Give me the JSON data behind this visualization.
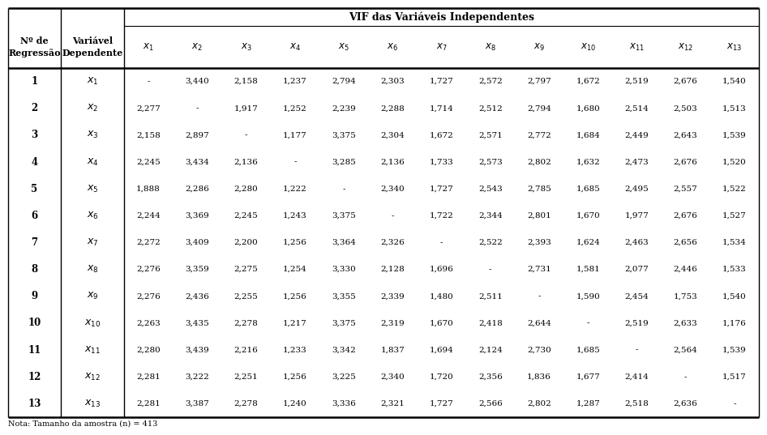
{
  "title": "VIF das Variáveis Independentes",
  "col0_header": "Nº de\nRegressão",
  "col1_header": "Variável\nDependente",
  "vif_headers": [
    "x_1",
    "x_2",
    "x_3",
    "x_4",
    "x_5",
    "x_6",
    "x_7",
    "x_8",
    "x_9",
    "x_10",
    "x_11",
    "x_12",
    "x_13"
  ],
  "rows": [
    {
      "reg": "1",
      "dep": "1",
      "vals": [
        "-",
        "3,440",
        "2,158",
        "1,237",
        "2,794",
        "2,303",
        "1,727",
        "2,572",
        "2,797",
        "1,672",
        "2,519",
        "2,676",
        "1,540"
      ]
    },
    {
      "reg": "2",
      "dep": "2",
      "vals": [
        "2,277",
        "-",
        "1,917",
        "1,252",
        "2,239",
        "2,288",
        "1,714",
        "2,512",
        "2,794",
        "1,680",
        "2,514",
        "2,503",
        "1,513"
      ]
    },
    {
      "reg": "3",
      "dep": "3",
      "vals": [
        "2,158",
        "2,897",
        "-",
        "1,177",
        "3,375",
        "2,304",
        "1,672",
        "2,571",
        "2,772",
        "1,684",
        "2,449",
        "2,643",
        "1,539"
      ]
    },
    {
      "reg": "4",
      "dep": "4",
      "vals": [
        "2,245",
        "3,434",
        "2,136",
        "-",
        "3,285",
        "2,136",
        "1,733",
        "2,573",
        "2,802",
        "1,632",
        "2,473",
        "2,676",
        "1,520"
      ]
    },
    {
      "reg": "5",
      "dep": "5",
      "vals": [
        "1,888",
        "2,286",
        "2,280",
        "1,222",
        "-",
        "2,340",
        "1,727",
        "2,543",
        "2,785",
        "1,685",
        "2,495",
        "2,557",
        "1,522"
      ]
    },
    {
      "reg": "6",
      "dep": "6",
      "vals": [
        "2,244",
        "3,369",
        "2,245",
        "1,243",
        "3,375",
        "-",
        "1,722",
        "2,344",
        "2,801",
        "1,670",
        "1,977",
        "2,676",
        "1,527"
      ]
    },
    {
      "reg": "7",
      "dep": "7",
      "vals": [
        "2,272",
        "3,409",
        "2,200",
        "1,256",
        "3,364",
        "2,326",
        "-",
        "2,522",
        "2,393",
        "1,624",
        "2,463",
        "2,656",
        "1,534"
      ]
    },
    {
      "reg": "8",
      "dep": "8",
      "vals": [
        "2,276",
        "3,359",
        "2,275",
        "1,254",
        "3,330",
        "2,128",
        "1,696",
        "-",
        "2,731",
        "1,581",
        "2,077",
        "2,446",
        "1,533"
      ]
    },
    {
      "reg": "9",
      "dep": "9",
      "vals": [
        "2,276",
        "2,436",
        "2,255",
        "1,256",
        "3,355",
        "2,339",
        "1,480",
        "2,511",
        "-",
        "1,590",
        "2,454",
        "1,753",
        "1,540"
      ]
    },
    {
      "reg": "10",
      "dep": "10",
      "vals": [
        "2,263",
        "3,435",
        "2,278",
        "1,217",
        "3,375",
        "2,319",
        "1,670",
        "2,418",
        "2,644",
        "-",
        "2,519",
        "2,633",
        "1,176"
      ]
    },
    {
      "reg": "11",
      "dep": "11",
      "vals": [
        "2,280",
        "3,439",
        "2,216",
        "1,233",
        "3,342",
        "1,837",
        "1,694",
        "2,124",
        "2,730",
        "1,685",
        "-",
        "2,564",
        "1,539"
      ]
    },
    {
      "reg": "12",
      "dep": "12",
      "vals": [
        "2,281",
        "3,222",
        "2,251",
        "1,256",
        "3,225",
        "2,340",
        "1,720",
        "2,356",
        "1,836",
        "1,677",
        "2,414",
        "-",
        "1,517"
      ]
    },
    {
      "reg": "13",
      "dep": "13",
      "vals": [
        "2,281",
        "3,387",
        "2,278",
        "1,240",
        "3,336",
        "2,321",
        "1,727",
        "2,566",
        "2,802",
        "1,287",
        "2,518",
        "2,636",
        "-"
      ]
    }
  ],
  "background": "#ffffff",
  "footnote": "Nota: Tamanho da amostra (n) = 413"
}
